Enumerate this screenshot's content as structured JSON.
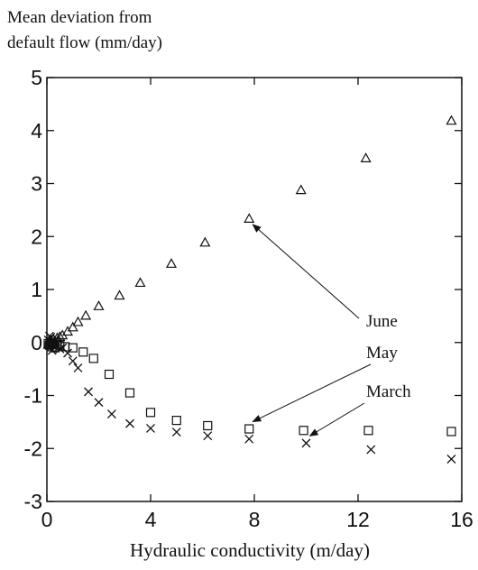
{
  "chart_data": {
    "type": "scatter",
    "ylabel_lines": [
      "Mean deviation from",
      "default flow (mm/day)"
    ],
    "xlabel": "Hydraulic conductivity (m/day)",
    "xlim": [
      0,
      16
    ],
    "ylim": [
      -3,
      5
    ],
    "xticks": [
      0,
      4,
      8,
      12,
      16
    ],
    "yticks": [
      5,
      4,
      3,
      2,
      1,
      0,
      -1,
      -2,
      -3
    ],
    "series": [
      {
        "name": "June",
        "marker": "triangle",
        "points": [
          [
            0.05,
            -0.05
          ],
          [
            0.1,
            0
          ],
          [
            0.15,
            0.03
          ],
          [
            0.2,
            -0.02
          ],
          [
            0.25,
            0.05
          ],
          [
            0.3,
            0.02
          ],
          [
            0.4,
            0.08
          ],
          [
            0.5,
            0.1
          ],
          [
            0.6,
            0.13
          ],
          [
            0.8,
            0.2
          ],
          [
            1.0,
            0.28
          ],
          [
            1.2,
            0.38
          ],
          [
            1.5,
            0.5
          ],
          [
            2.0,
            0.68
          ],
          [
            2.8,
            0.88
          ],
          [
            3.6,
            1.12
          ],
          [
            4.8,
            1.48
          ],
          [
            6.1,
            1.88
          ],
          [
            7.8,
            2.33
          ],
          [
            9.8,
            2.87
          ],
          [
            12.3,
            3.47
          ],
          [
            15.6,
            4.18
          ]
        ]
      },
      {
        "name": "May",
        "marker": "square",
        "points": [
          [
            0.05,
            -0.02
          ],
          [
            0.1,
            -0.05
          ],
          [
            0.15,
            0
          ],
          [
            0.2,
            -0.08
          ],
          [
            0.25,
            -0.04
          ],
          [
            0.3,
            -0.1
          ],
          [
            0.4,
            -0.03
          ],
          [
            0.5,
            -0.06
          ],
          [
            0.7,
            -0.08
          ],
          [
            1.0,
            -0.1
          ],
          [
            1.4,
            -0.18
          ],
          [
            1.8,
            -0.3
          ],
          [
            2.4,
            -0.6
          ],
          [
            3.2,
            -0.95
          ],
          [
            4.0,
            -1.32
          ],
          [
            5.0,
            -1.47
          ],
          [
            6.2,
            -1.57
          ],
          [
            7.8,
            -1.63
          ],
          [
            9.9,
            -1.66
          ],
          [
            12.4,
            -1.66
          ],
          [
            15.6,
            -1.68
          ]
        ]
      },
      {
        "name": "March",
        "marker": "x",
        "points": [
          [
            0.05,
            0.05
          ],
          [
            0.1,
            0.12
          ],
          [
            0.15,
            0.1
          ],
          [
            0.2,
            -0.15
          ],
          [
            0.3,
            0.03
          ],
          [
            0.4,
            -0.05
          ],
          [
            0.5,
            -0.12
          ],
          [
            0.6,
            -0.1
          ],
          [
            0.8,
            -0.2
          ],
          [
            1.0,
            -0.35
          ],
          [
            1.2,
            -0.48
          ],
          [
            1.6,
            -0.93
          ],
          [
            2.0,
            -1.13
          ],
          [
            2.5,
            -1.35
          ],
          [
            3.2,
            -1.53
          ],
          [
            4.0,
            -1.62
          ],
          [
            5.0,
            -1.69
          ],
          [
            6.2,
            -1.76
          ],
          [
            7.8,
            -1.82
          ],
          [
            10.0,
            -1.9
          ],
          [
            12.5,
            -2.02
          ],
          [
            15.6,
            -2.2
          ]
        ]
      }
    ]
  }
}
